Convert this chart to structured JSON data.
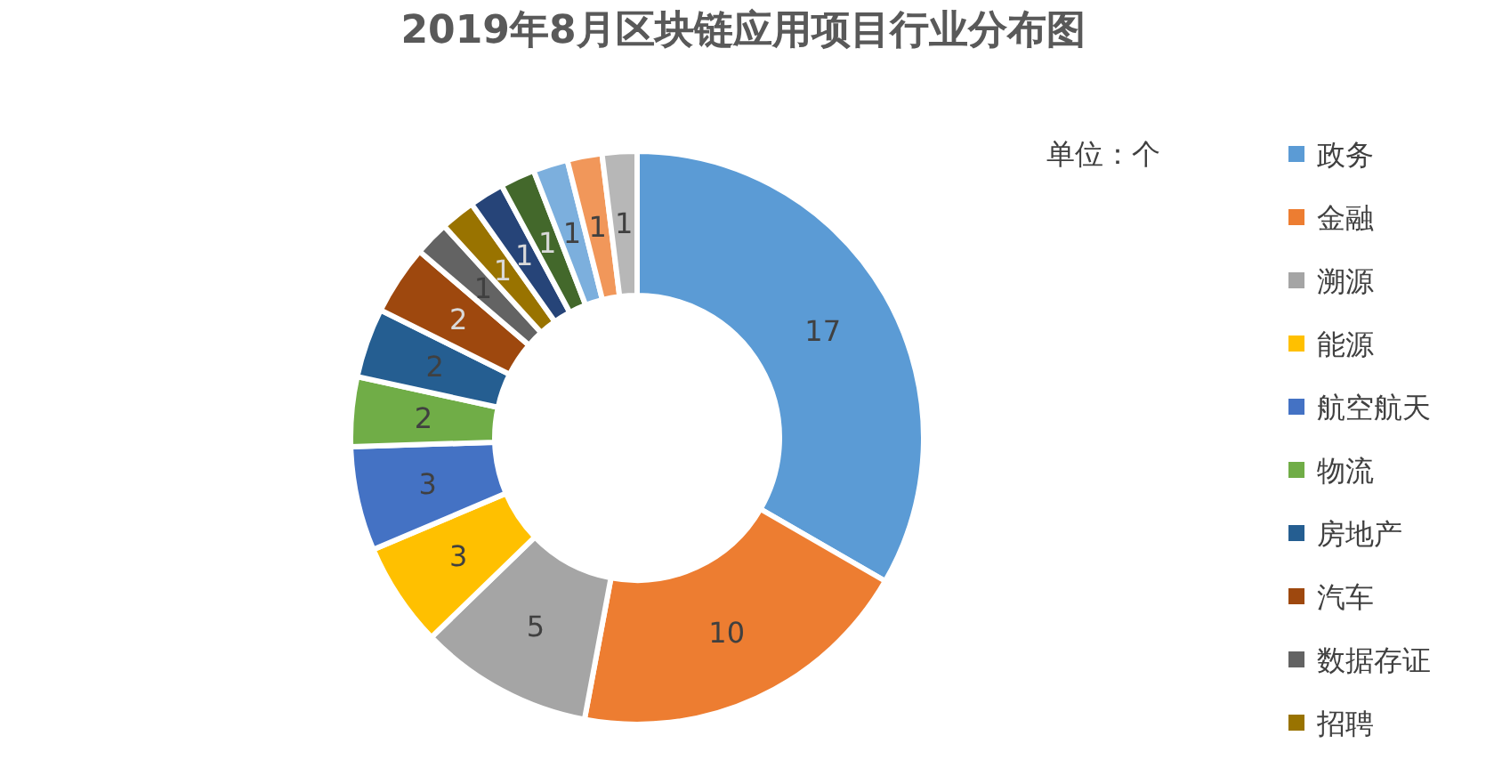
{
  "chart_data": {
    "type": "donut",
    "title": "2019年8月区块链应用项目行业分布图",
    "legend_title": "单位：个",
    "categories": [
      "政务",
      "金融",
      "溯源",
      "能源",
      "航空航天",
      "物流",
      "房地产",
      "汽车",
      "数据存证",
      "招聘",
      null,
      null,
      null,
      null,
      null
    ],
    "values": [
      17,
      10,
      5,
      3,
      3,
      2,
      2,
      2,
      1,
      1,
      1,
      1,
      1,
      1,
      1
    ],
    "colors": [
      "#5b9bd5",
      "#ed7d31",
      "#a5a5a5",
      "#ffc000",
      "#4472c4",
      "#70ad47",
      "#255e91",
      "#9e480e",
      "#636363",
      "#997300",
      "#264478",
      "#43682b",
      "#7cafdd",
      "#f1975a",
      "#b7b7b7"
    ],
    "data_labels": true,
    "legend": "right"
  }
}
